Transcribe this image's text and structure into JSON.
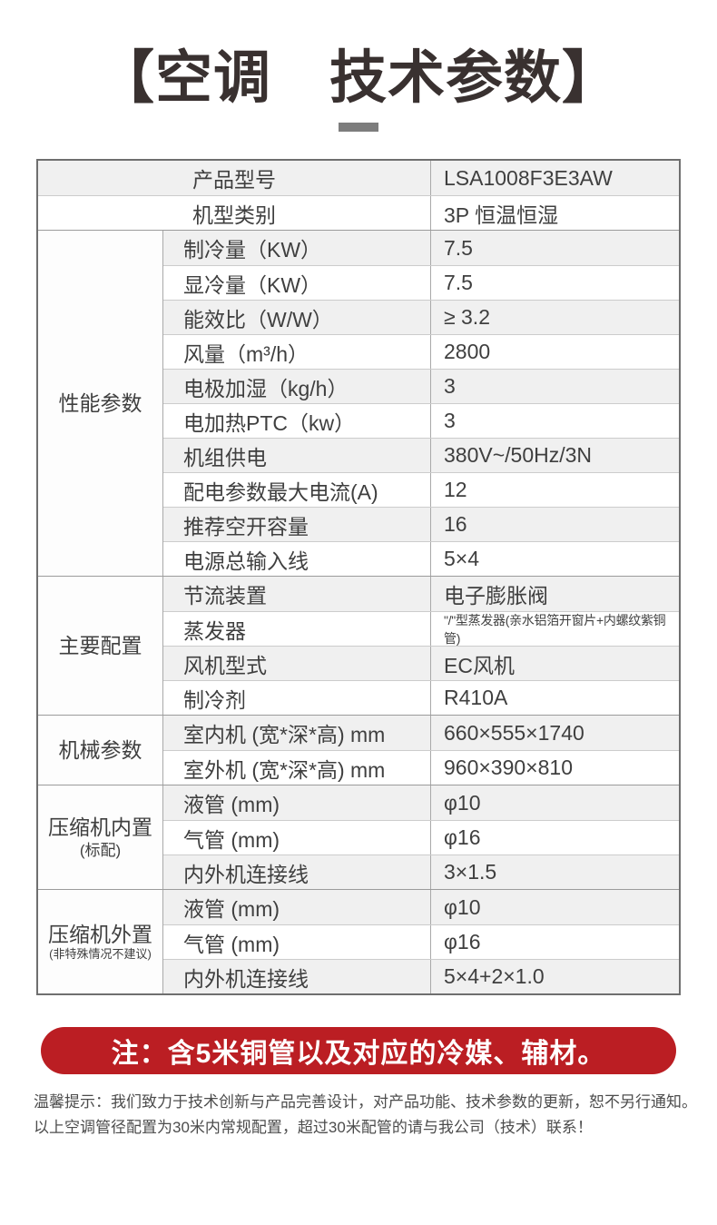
{
  "colors": {
    "accent_red": "#bb1e23",
    "title_color": "#393130"
  },
  "title": {
    "text": "【空调　技术参数】"
  },
  "table": {
    "header_rows": [
      {
        "label": "产品型号",
        "value": "LSA1008F3E3AW"
      },
      {
        "label": "机型类别",
        "value": "3P 恒温恒湿"
      }
    ],
    "groups": [
      {
        "name": "性能参数",
        "rows": [
          {
            "label": "制冷量（KW）",
            "value": "7.5"
          },
          {
            "label": "显冷量（KW）",
            "value": "7.5"
          },
          {
            "label": "能效比（W/W）",
            "value": "≥ 3.2"
          },
          {
            "label": "风量（m³/h）",
            "value": "2800"
          },
          {
            "label": "电极加湿（kg/h）",
            "value": "3"
          },
          {
            "label": "电加热PTC（kw）",
            "value": "3"
          },
          {
            "label": "机组供电",
            "value": "380V~/50Hz/3N"
          },
          {
            "label": "配电参数最大电流(A)",
            "value": "12"
          },
          {
            "label": "推荐空开容量",
            "value": "16"
          },
          {
            "label": "电源总输入线",
            "value": "5×4"
          }
        ]
      },
      {
        "name": "主要配置",
        "rows": [
          {
            "label": "节流装置",
            "value": "电子膨胀阀"
          },
          {
            "label": "蒸发器",
            "value": "\"/\"型蒸发器(亲水铝箔开窗片+内螺纹紫铜管)"
          },
          {
            "label": "风机型式",
            "value": "EC风机"
          },
          {
            "label": "制冷剂",
            "value": "R410A"
          }
        ]
      },
      {
        "name": "机械参数",
        "rows": [
          {
            "label": "室内机 (宽*深*高) mm",
            "value": "660×555×1740"
          },
          {
            "label": "室外机 (宽*深*高) mm",
            "value": "960×390×810"
          }
        ]
      },
      {
        "name": "压缩机内置",
        "sub": "(标配)",
        "rows": [
          {
            "label": "液管 (mm)",
            "value": "φ10"
          },
          {
            "label": "气管 (mm)",
            "value": "φ16"
          },
          {
            "label": "内外机连接线",
            "value": "3×1.5"
          }
        ]
      },
      {
        "name": "压缩机外置",
        "sub": "(非特殊情况不建议)",
        "rows": [
          {
            "label": "液管 (mm)",
            "value": "φ10"
          },
          {
            "label": "气管 (mm)",
            "value": "φ16"
          },
          {
            "label": "内外机连接线",
            "value": "5×4+2×1.0"
          }
        ]
      }
    ]
  },
  "note": {
    "text": "注：含5米铜管以及对应的冷媒、辅材。"
  },
  "footer": {
    "line1": "温馨提示：我们致力于技术创新与产品完善设计，对产品功能、技术参数的更新，恕不另行通知。",
    "line2": "以上空调管径配置为30米内常规配置，超过30米配管的请与我公司（技术）联系！"
  }
}
